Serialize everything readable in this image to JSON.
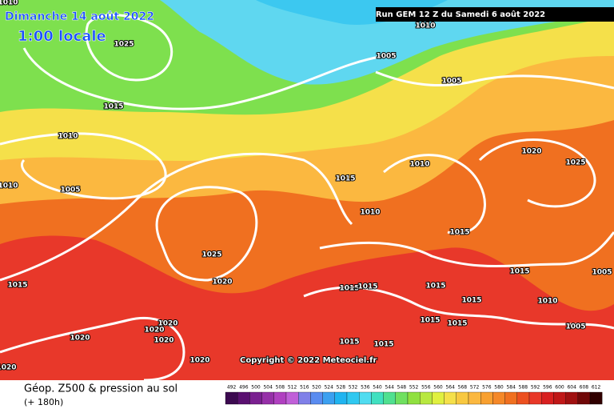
{
  "header": {
    "date": "Dimanche 14 août 2022",
    "time": "1:00 locale",
    "run": "Run GEM 12 Z du Samedi 6 août 2022"
  },
  "isobar_labels": [
    "1010",
    "1025",
    "1015",
    "1010",
    "1005",
    "1010",
    "1005",
    "1010",
    "1005",
    "1015",
    "1010",
    "1010",
    "1020",
    "1025",
    "1015",
    "1025",
    "1020",
    "1015",
    "1015",
    "1015",
    "1015",
    "1015",
    "1005",
    "1010",
    "1015",
    "1015",
    "1015",
    "1005",
    "1020",
    "1020",
    "1020",
    "1020",
    "1020",
    "1015",
    "1015",
    "1020"
  ],
  "copyright": "Copyright © 2022 Meteociel.fr",
  "footer": {
    "title": "Géop. Z500 & pression au sol",
    "lead": "(+ 180h)"
  },
  "colorbar": {
    "ticks": [
      492,
      496,
      500,
      504,
      508,
      512,
      516,
      520,
      524,
      528,
      532,
      536,
      540,
      544,
      548,
      552,
      556,
      560,
      564,
      568,
      572,
      576,
      580,
      584,
      588,
      592,
      596,
      600,
      604,
      608,
      612
    ],
    "colors": [
      "#3c0a50",
      "#5a1070",
      "#7a2090",
      "#9630a8",
      "#b040c0",
      "#c060d8",
      "#8080e8",
      "#5a8cf0",
      "#3ca0f0",
      "#20b4f0",
      "#30c8f0",
      "#50dcf0",
      "#40e0c0",
      "#50e090",
      "#70e060",
      "#90e040",
      "#b8e840",
      "#e0f040",
      "#f5e04a",
      "#f8c840",
      "#fbb840",
      "#f8a030",
      "#f58828",
      "#f07020",
      "#ec5020",
      "#e83828",
      "#d82020",
      "#c01818",
      "#a01010",
      "#700808",
      "#300000"
    ]
  }
}
